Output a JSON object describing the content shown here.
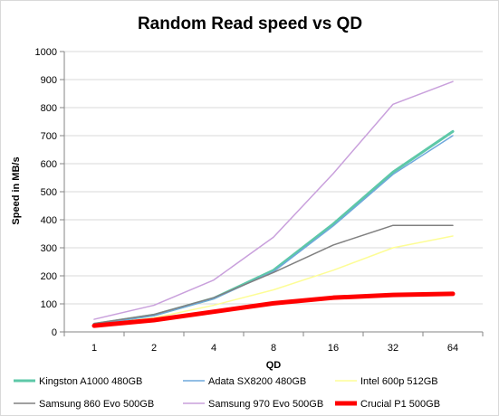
{
  "chart_data": {
    "type": "line",
    "title": "Random Read speed vs QD",
    "xlabel": "QD",
    "ylabel": "Speed in MB/s",
    "categories": [
      "1",
      "2",
      "4",
      "8",
      "16",
      "32",
      "64"
    ],
    "ylim": [
      0,
      1000
    ],
    "yticks": [
      0,
      100,
      200,
      300,
      400,
      500,
      600,
      700,
      800,
      900,
      1000
    ],
    "grid": true,
    "legend_position": "bottom",
    "series": [
      {
        "name": "Kingston A1000 480GB",
        "color": "#5ec8a8",
        "values": [
          28,
          60,
          120,
          220,
          385,
          570,
          715
        ]
      },
      {
        "name": "Adata SX8200 480GB",
        "color": "#6fa8dc",
        "values": [
          27,
          58,
          118,
          215,
          378,
          562,
          700
        ]
      },
      {
        "name": "Intel 600p 512GB",
        "color": "#fdfd96",
        "values": [
          25,
          50,
          95,
          150,
          220,
          300,
          342
        ]
      },
      {
        "name": "Samsung 860 Evo 500GB",
        "color": "#808080",
        "values": [
          30,
          62,
          122,
          212,
          310,
          380,
          380
        ]
      },
      {
        "name": "Samsung 970 Evo 500GB",
        "color": "#c9a0dc",
        "values": [
          45,
          95,
          185,
          338,
          565,
          812,
          893
        ]
      },
      {
        "name": "Crucial P1 500GB",
        "color": "#ff0000",
        "values": [
          22,
          42,
          72,
          102,
          122,
          132,
          136
        ]
      }
    ]
  }
}
